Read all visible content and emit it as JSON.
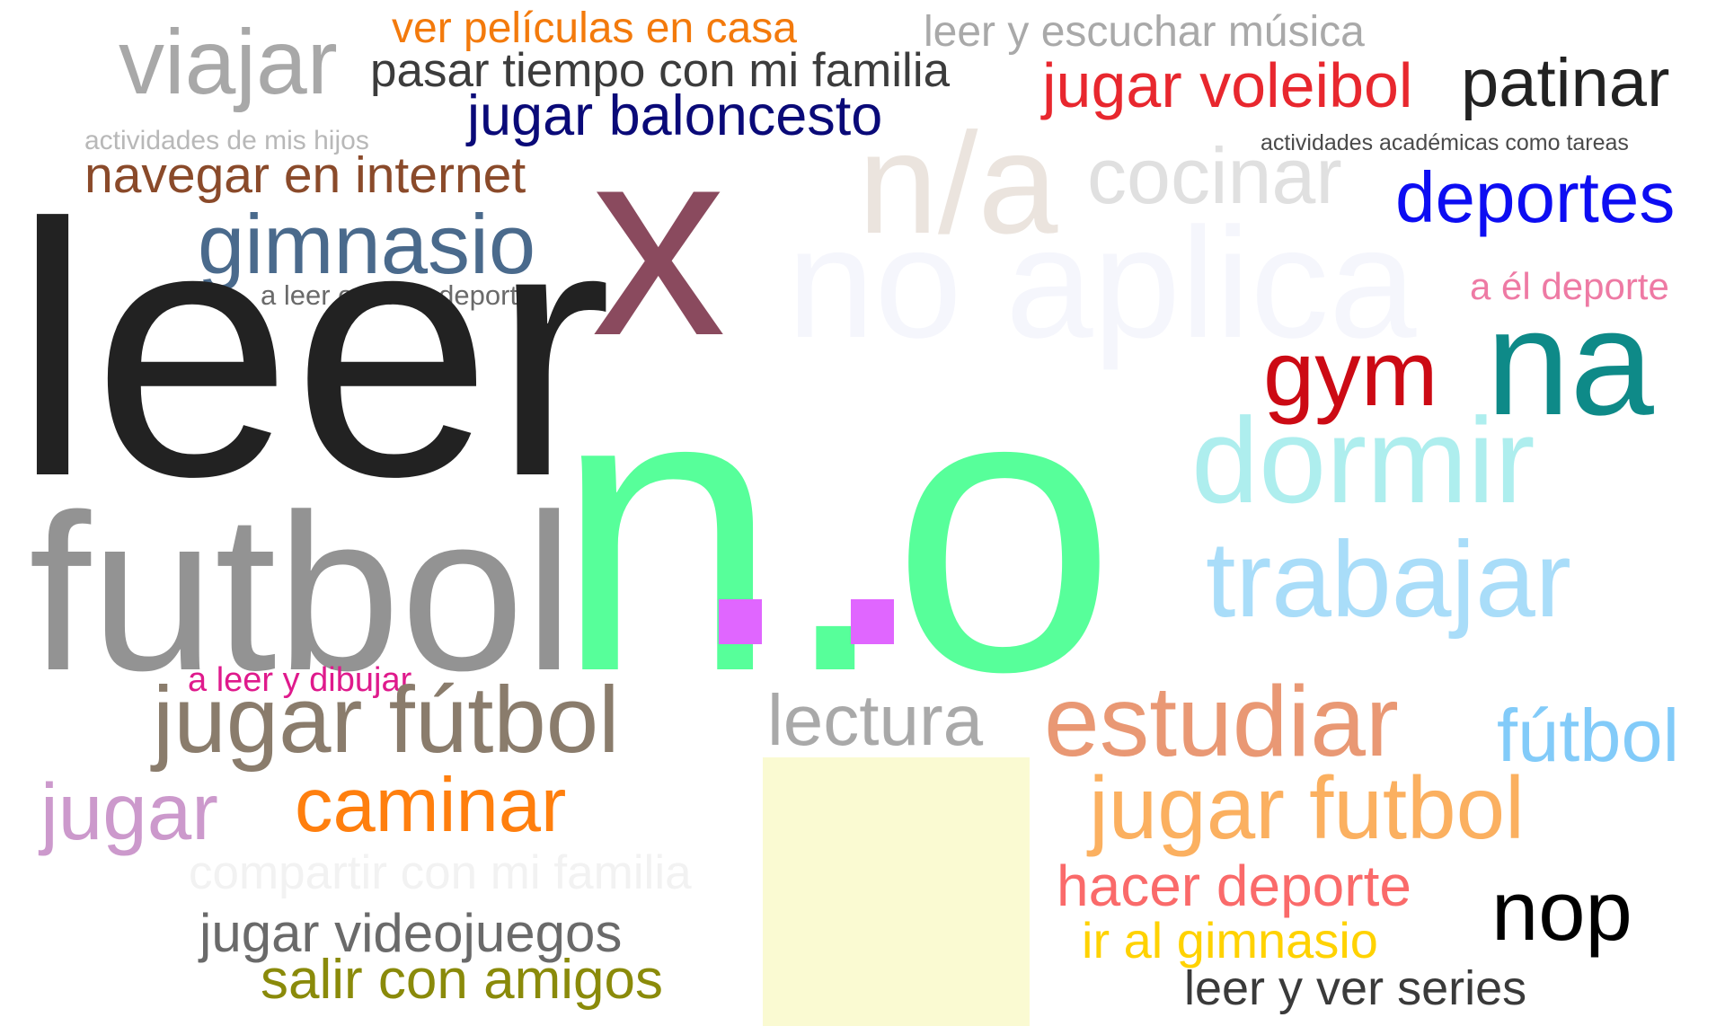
{
  "cloud": {
    "words": {
      "ver_peliculas": {
        "text": "ver películas en casa",
        "color": "#f37a0c"
      },
      "leer_escuchar": {
        "text": "leer y escuchar música",
        "color": "#a9a9a9"
      },
      "viajar": {
        "text": "viajar",
        "color": "#a8a8a8"
      },
      "pasar_tiempo": {
        "text": "pasar tiempo con mi familia",
        "color": "#3c3c3c"
      },
      "jugar_voleibol": {
        "text": "jugar voleibol",
        "color": "#e8272e"
      },
      "patinar": {
        "text": "patinar",
        "color": "#222222"
      },
      "jugar_baloncesto": {
        "text": "jugar baloncesto",
        "color": "#0a0a78"
      },
      "actividades_hijos": {
        "text": "actividades de mis hijos",
        "color": "#b8b8b8"
      },
      "n_a": {
        "text": "n/a",
        "color": "#ebe4de"
      },
      "cocinar": {
        "text": "cocinar",
        "color": "#e0e0e0"
      },
      "actividades_academicas": {
        "text": "actividades académicas como tareas",
        "color": "#4a4a4a"
      },
      "navegar": {
        "text": "navegar en internet",
        "color": "#8a4a2a"
      },
      "x": {
        "text": "x",
        "color": "#8a4a5e"
      },
      "deportes": {
        "text": "deportes",
        "color": "#0d0df2"
      },
      "gimnasio": {
        "text": "gimnasio",
        "color": "#4a6a8c"
      },
      "no_aplica": {
        "text": "no aplica",
        "color": "#f5f6fc"
      },
      "a_leer_deporte": {
        "text": "a leer o hacer deporte",
        "color": "#6a6a6a"
      },
      "a_el_deporte": {
        "text": "a él deporte",
        "color": "#ee7aa4"
      },
      "leer": {
        "text": "leer",
        "color": "#222222"
      },
      "gym": {
        "text": "gym",
        "color": "#cc0a14"
      },
      "na": {
        "text": "na",
        "color": "#0e8a88"
      },
      "dormir": {
        "text": "dormir",
        "color": "#aeeeee"
      },
      "futbol": {
        "text": "futbol",
        "color": "#939393"
      },
      "trabajar": {
        "text": "trabajar",
        "color": "#a9ddf9"
      },
      "n_o": {
        "text": "n.o",
        "color": "#57ff9a"
      },
      "a_leer_dibujar": {
        "text": "a leer y dibujar",
        "color": "#df1a8c"
      },
      "jugar_futbol_acc": {
        "text": "jugar fútbol",
        "color": "#8a7c6c"
      },
      "lectura": {
        "text": "lectura",
        "color": "#a9a9a9"
      },
      "estudiar": {
        "text": "estudiar",
        "color": "#e99874"
      },
      "futbol_acc": {
        "text": "fútbol",
        "color": "#82cbf9"
      },
      "jugar": {
        "text": "jugar",
        "color": "#cc99cc"
      },
      "caminar": {
        "text": "caminar",
        "color": "#ff7f0e"
      },
      "jugar_futbol": {
        "text": "jugar futbol",
        "color": "#fbb060"
      },
      "compartir": {
        "text": "compartir con mi familia",
        "color": "#f2f2f2"
      },
      "hacer_deporte": {
        "text": "hacer deporte",
        "color": "#fa6a6a"
      },
      "nop": {
        "text": "nop",
        "color": "#000000"
      },
      "jugar_videojuegos": {
        "text": "jugar videojuegos",
        "color": "#6a6a6a"
      },
      "ir_gimnasio": {
        "text": "ir al gimnasio",
        "color": "#ffd200"
      },
      "salir_amigos": {
        "text": "salir con amigos",
        "color": "#8a8a0a"
      },
      "leer_ver_series": {
        "text": "leer y ver series",
        "color": "#3a3a3a"
      }
    },
    "blocks": {
      "yellow": {
        "color": "#fafad2"
      },
      "magenta": {
        "color": "#e066ff"
      }
    }
  }
}
